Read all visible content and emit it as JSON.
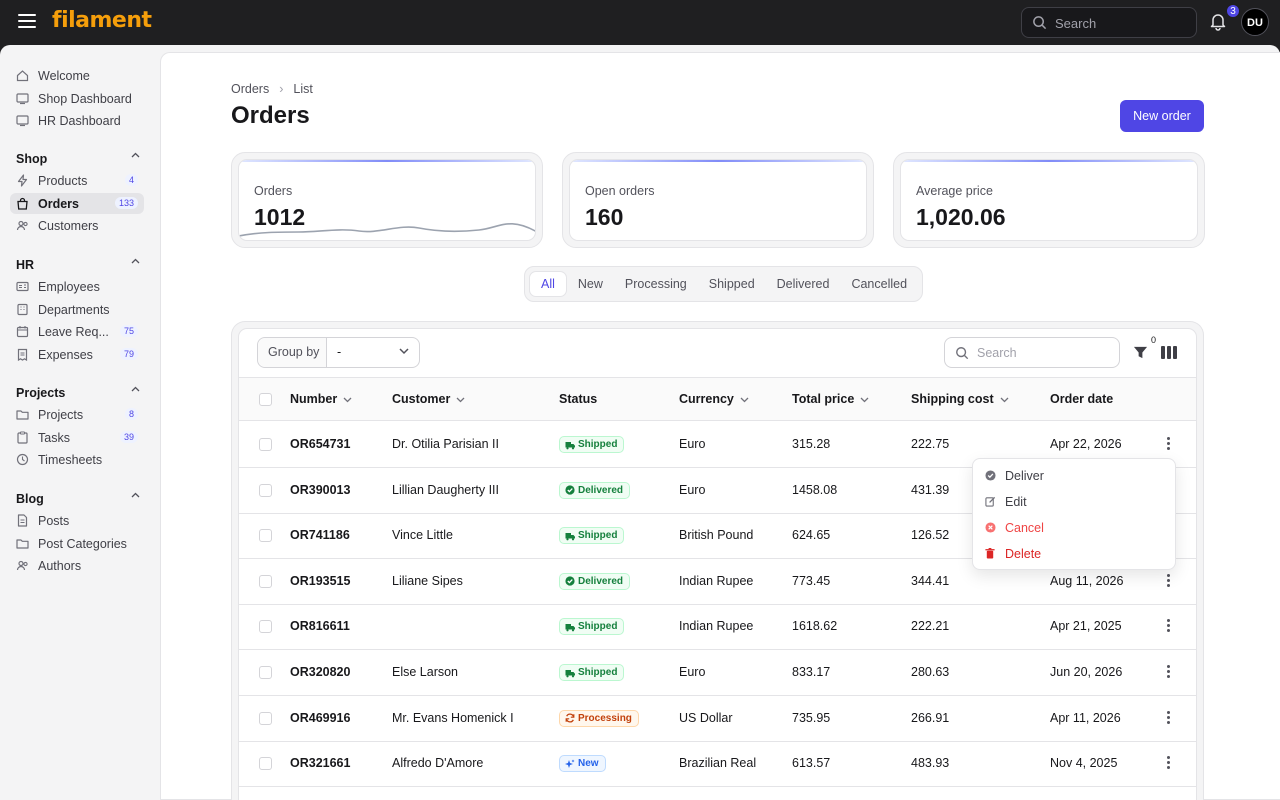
{
  "app": {
    "logo": "filament"
  },
  "topbar": {
    "search_placeholder": "Search",
    "notifications_count": "3",
    "user_initials": "DU"
  },
  "sidebar": {
    "top_items": [
      {
        "label": "Welcome",
        "icon": "home-icon"
      },
      {
        "label": "Shop Dashboard",
        "icon": "dashboard-icon"
      },
      {
        "label": "HR Dashboard",
        "icon": "dashboard-icon"
      }
    ],
    "groups": [
      {
        "label": "Shop",
        "items": [
          {
            "label": "Products",
            "count": "4",
            "icon": "bolt-icon"
          },
          {
            "label": "Orders",
            "count": "133",
            "icon": "shopping-bag-icon",
            "active": true
          },
          {
            "label": "Customers",
            "icon": "users-icon"
          }
        ]
      },
      {
        "label": "HR",
        "items": [
          {
            "label": "Employees",
            "icon": "id-card-icon"
          },
          {
            "label": "Departments",
            "icon": "building-icon"
          },
          {
            "label": "Leave Req...",
            "count": "75",
            "icon": "calendar-icon"
          },
          {
            "label": "Expenses",
            "count": "79",
            "icon": "receipt-icon"
          }
        ]
      },
      {
        "label": "Projects",
        "items": [
          {
            "label": "Projects",
            "count": "8",
            "icon": "folder-icon"
          },
          {
            "label": "Tasks",
            "count": "39",
            "icon": "clipboard-icon"
          },
          {
            "label": "Timesheets",
            "icon": "clock-icon"
          }
        ]
      },
      {
        "label": "Blog",
        "items": [
          {
            "label": "Posts",
            "icon": "document-icon"
          },
          {
            "label": "Post Categories",
            "icon": "folder-icon"
          },
          {
            "label": "Authors",
            "icon": "users-icon"
          }
        ]
      }
    ]
  },
  "page": {
    "breadcrumb": [
      "Orders",
      "List"
    ],
    "title": "Orders",
    "new_button": "New order"
  },
  "stats": [
    {
      "label": "Orders",
      "value": "1012"
    },
    {
      "label": "Open orders",
      "value": "160"
    },
    {
      "label": "Average price",
      "value": "1,020.06"
    }
  ],
  "tabs": [
    "All",
    "New",
    "Processing",
    "Shipped",
    "Delivered",
    "Cancelled"
  ],
  "active_tab": "All",
  "table": {
    "group_by_label": "Group by",
    "group_by_value": "-",
    "search_placeholder": "Search",
    "filter_count": "0",
    "columns": [
      "Number",
      "Customer",
      "Status",
      "Currency",
      "Total price",
      "Shipping cost",
      "Order date"
    ],
    "rows": [
      {
        "number": "OR654731",
        "customer": "Dr. Otilia Parisian II",
        "status": "Shipped",
        "currency": "Euro",
        "total": "315.28",
        "shipping": "222.75",
        "date": "Apr 22, 2026"
      },
      {
        "number": "OR390013",
        "customer": "Lillian Daugherty III",
        "status": "Delivered",
        "currency": "Euro",
        "total": "1458.08",
        "shipping": "431.39",
        "date": ""
      },
      {
        "number": "OR741186",
        "customer": "Vince Little",
        "status": "Shipped",
        "currency": "British Pound",
        "total": "624.65",
        "shipping": "126.52",
        "date": ""
      },
      {
        "number": "OR193515",
        "customer": "Liliane Sipes",
        "status": "Delivered",
        "currency": "Indian Rupee",
        "total": "773.45",
        "shipping": "344.41",
        "date": "Aug 11, 2026"
      },
      {
        "number": "OR816611",
        "customer": "",
        "status": "Shipped",
        "currency": "Indian Rupee",
        "total": "1618.62",
        "shipping": "222.21",
        "date": "Apr 21, 2025"
      },
      {
        "number": "OR320820",
        "customer": "Else Larson",
        "status": "Shipped",
        "currency": "Euro",
        "total": "833.17",
        "shipping": "280.63",
        "date": "Jun 20, 2026"
      },
      {
        "number": "OR469916",
        "customer": "Mr. Evans Homenick I",
        "status": "Processing",
        "currency": "US Dollar",
        "total": "735.95",
        "shipping": "266.91",
        "date": "Apr 11, 2026"
      },
      {
        "number": "OR321661",
        "customer": "Alfredo D'Amore",
        "status": "New",
        "currency": "Brazilian Real",
        "total": "613.57",
        "shipping": "483.93",
        "date": "Nov 4, 2025"
      }
    ]
  },
  "row_actions": [
    "Deliver",
    "Edit",
    "Cancel",
    "Delete"
  ],
  "colors": {
    "primary": "#4f46e5",
    "brand": "#f59e0b",
    "success": "#15803d",
    "warning": "#c2410c",
    "info": "#2563eb",
    "danger": "#dc2626"
  }
}
